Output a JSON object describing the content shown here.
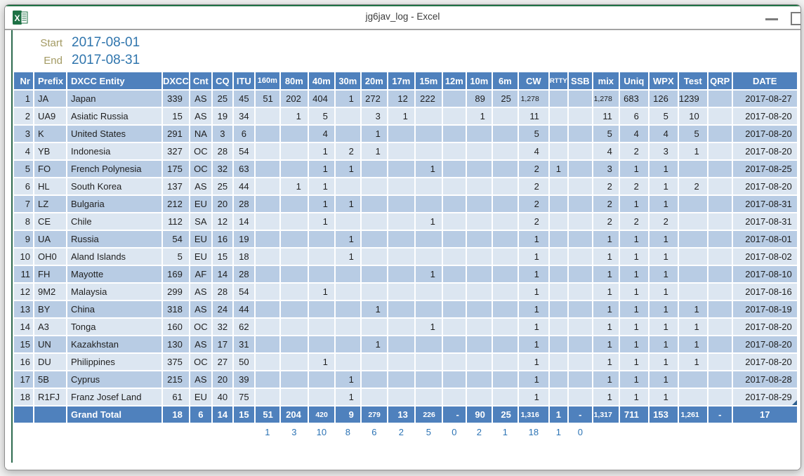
{
  "window": {
    "title": "jg6jav_log - Excel"
  },
  "icons": {
    "app_icon": "excel-icon",
    "minimize": "minimize-icon",
    "maximize": "maximize-icon"
  },
  "info": {
    "start_label": "Start",
    "start_value": "2017-08-01",
    "end_label": "End",
    "end_value": "2017-08-31"
  },
  "table": {
    "headers": [
      "Nr",
      "Prefix",
      "DXCC Entity",
      "DXCC",
      "Cnt",
      "CQ",
      "ITU",
      "160m",
      "80m",
      "40m",
      "30m",
      "20m",
      "17m",
      "15m",
      "12m",
      "10m",
      "6m",
      "CW",
      "RTTY",
      "SSB",
      "mix",
      "Uniq",
      "WPX",
      "Test",
      "QRP",
      "DATE"
    ],
    "rows": [
      [
        "1",
        "JA",
        "Japan",
        "339",
        "AS",
        "25",
        "45",
        "51",
        "202",
        "404",
        "1",
        "272",
        "12",
        "222",
        "",
        "89",
        "25",
        "1,278",
        "",
        "",
        "1,278",
        "683",
        "126",
        "1239",
        "",
        "2017-08-27"
      ],
      [
        "2",
        "UA9",
        "Asiatic Russia",
        "15",
        "AS",
        "19",
        "34",
        "",
        "1",
        "5",
        "",
        "3",
        "1",
        "",
        "",
        "1",
        "",
        "11",
        "",
        "",
        "11",
        "6",
        "5",
        "10",
        "",
        "2017-08-20"
      ],
      [
        "3",
        "K",
        "United States",
        "291",
        "NA",
        "3",
        "6",
        "",
        "",
        "4",
        "",
        "1",
        "",
        "",
        "",
        "",
        "",
        "5",
        "",
        "",
        "5",
        "4",
        "4",
        "5",
        "",
        "2017-08-20"
      ],
      [
        "4",
        "YB",
        "Indonesia",
        "327",
        "OC",
        "28",
        "54",
        "",
        "",
        "1",
        "2",
        "1",
        "",
        "",
        "",
        "",
        "",
        "4",
        "",
        "",
        "4",
        "2",
        "3",
        "1",
        "",
        "2017-08-20"
      ],
      [
        "5",
        "FO",
        "French Polynesia",
        "175",
        "OC",
        "32",
        "63",
        "",
        "",
        "1",
        "1",
        "",
        "",
        "1",
        "",
        "",
        "",
        "2",
        "1",
        "",
        "3",
        "1",
        "1",
        "",
        "",
        "2017-08-25"
      ],
      [
        "6",
        "HL",
        "South Korea",
        "137",
        "AS",
        "25",
        "44",
        "",
        "1",
        "1",
        "",
        "",
        "",
        "",
        "",
        "",
        "",
        "2",
        "",
        "",
        "2",
        "2",
        "1",
        "2",
        "",
        "2017-08-20"
      ],
      [
        "7",
        "LZ",
        "Bulgaria",
        "212",
        "EU",
        "20",
        "28",
        "",
        "",
        "1",
        "1",
        "",
        "",
        "",
        "",
        "",
        "",
        "2",
        "",
        "",
        "2",
        "1",
        "1",
        "",
        "",
        "2017-08-31"
      ],
      [
        "8",
        "CE",
        "Chile",
        "112",
        "SA",
        "12",
        "14",
        "",
        "",
        "1",
        "",
        "",
        "",
        "1",
        "",
        "",
        "",
        "2",
        "",
        "",
        "2",
        "2",
        "2",
        "",
        "",
        "2017-08-31"
      ],
      [
        "9",
        "UA",
        "Russia",
        "54",
        "EU",
        "16",
        "19",
        "",
        "",
        "",
        "1",
        "",
        "",
        "",
        "",
        "",
        "",
        "1",
        "",
        "",
        "1",
        "1",
        "1",
        "",
        "",
        "2017-08-01"
      ],
      [
        "10",
        "OH0",
        "Aland Islands",
        "5",
        "EU",
        "15",
        "18",
        "",
        "",
        "",
        "1",
        "",
        "",
        "",
        "",
        "",
        "",
        "1",
        "",
        "",
        "1",
        "1",
        "1",
        "",
        "",
        "2017-08-02"
      ],
      [
        "11",
        "FH",
        "Mayotte",
        "169",
        "AF",
        "14",
        "28",
        "",
        "",
        "",
        "",
        "",
        "",
        "1",
        "",
        "",
        "",
        "1",
        "",
        "",
        "1",
        "1",
        "1",
        "",
        "",
        "2017-08-10"
      ],
      [
        "12",
        "9M2",
        "Malaysia",
        "299",
        "AS",
        "28",
        "54",
        "",
        "",
        "1",
        "",
        "",
        "",
        "",
        "",
        "",
        "",
        "1",
        "",
        "",
        "1",
        "1",
        "1",
        "",
        "",
        "2017-08-16"
      ],
      [
        "13",
        "BY",
        "China",
        "318",
        "AS",
        "24",
        "44",
        "",
        "",
        "",
        "",
        "1",
        "",
        "",
        "",
        "",
        "",
        "1",
        "",
        "",
        "1",
        "1",
        "1",
        "1",
        "",
        "2017-08-19"
      ],
      [
        "14",
        "A3",
        "Tonga",
        "160",
        "OC",
        "32",
        "62",
        "",
        "",
        "",
        "",
        "",
        "",
        "1",
        "",
        "",
        "",
        "1",
        "",
        "",
        "1",
        "1",
        "1",
        "1",
        "",
        "2017-08-20"
      ],
      [
        "15",
        "UN",
        "Kazakhstan",
        "130",
        "AS",
        "17",
        "31",
        "",
        "",
        "",
        "",
        "1",
        "",
        "",
        "",
        "",
        "",
        "1",
        "",
        "",
        "1",
        "1",
        "1",
        "1",
        "",
        "2017-08-20"
      ],
      [
        "16",
        "DU",
        "Philippines",
        "375",
        "OC",
        "27",
        "50",
        "",
        "",
        "1",
        "",
        "",
        "",
        "",
        "",
        "",
        "",
        "1",
        "",
        "",
        "1",
        "1",
        "1",
        "1",
        "",
        "2017-08-20"
      ],
      [
        "17",
        "5B",
        "Cyprus",
        "215",
        "AS",
        "20",
        "39",
        "",
        "",
        "",
        "1",
        "",
        "",
        "",
        "",
        "",
        "",
        "1",
        "",
        "",
        "1",
        "1",
        "1",
        "",
        "",
        "2017-08-28"
      ],
      [
        "18",
        "R1FJ",
        "Franz Josef Land",
        "61",
        "EU",
        "40",
        "75",
        "",
        "",
        "",
        "1",
        "",
        "",
        "",
        "",
        "",
        "",
        "1",
        "",
        "",
        "1",
        "1",
        "1",
        "",
        "",
        "2017-08-29"
      ]
    ],
    "grand_total": [
      "",
      "",
      "Grand Total",
      "18",
      "6",
      "14",
      "15",
      "51",
      "204",
      "420",
      "9",
      "279",
      "13",
      "226",
      "-",
      "90",
      "25",
      "1,316",
      "1",
      "-",
      "1,317",
      "711",
      "153",
      "1,261",
      "-",
      "17"
    ],
    "footer_counts": [
      "",
      "",
      "",
      "",
      "",
      "",
      "",
      "1",
      "3",
      "10",
      "8",
      "6",
      "2",
      "5",
      "0",
      "2",
      "1",
      "18",
      "1",
      "0",
      "",
      "",
      "",
      "",
      "",
      ""
    ]
  },
  "colors": {
    "header_bg": "#4f81bd",
    "row_odd_bg": "#b8cce4",
    "row_even_bg": "#dce6f1",
    "grand_total_bg": "#4f81bd",
    "date_text": "#3c6ea5",
    "footer_text": "#2d74b5",
    "label_gold": "#a39a63",
    "value_blue": "#2f75ad",
    "excel_green": "#217346"
  }
}
